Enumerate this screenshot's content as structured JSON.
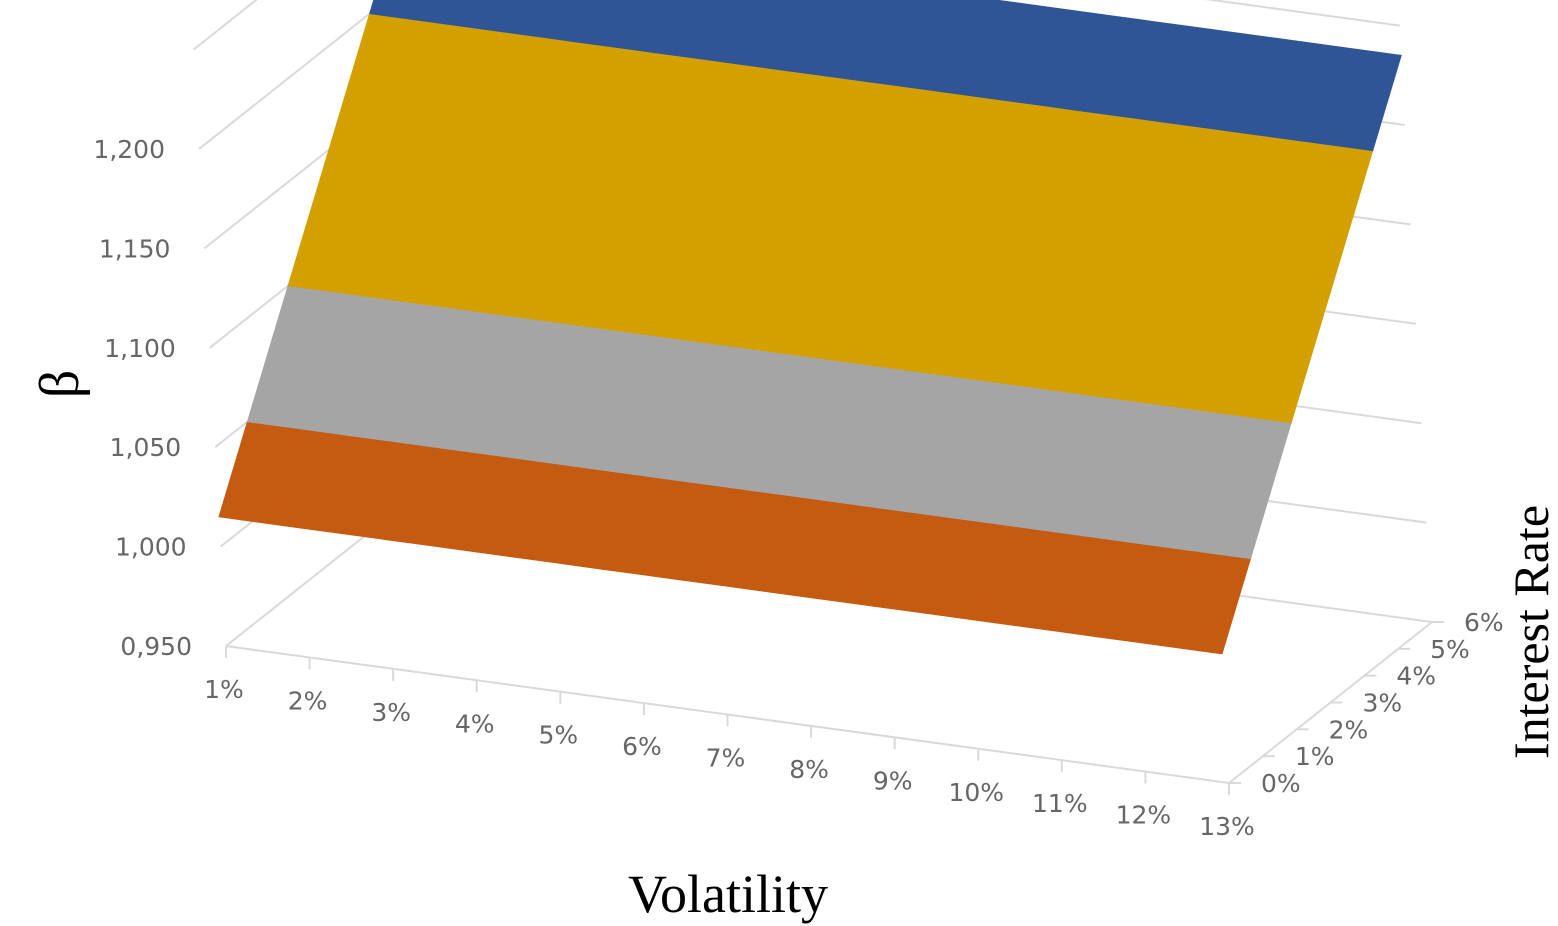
{
  "chart_data": {
    "type": "surface",
    "title": "",
    "xlabel": "Volatility",
    "ylabel": "Interest Rate",
    "zlabel": "β",
    "x_ticks": [
      "1%",
      "2%",
      "3%",
      "4%",
      "5%",
      "6%",
      "7%",
      "8%",
      "9%",
      "10%",
      "11%",
      "12%",
      "13%"
    ],
    "y_ticks": [
      "0%",
      "1%",
      "2%",
      "3%",
      "4%",
      "5%",
      "6%"
    ],
    "z_ticks": [
      "0,950",
      "1,000",
      "1,050",
      "1,100",
      "1,150",
      "1,200"
    ],
    "zlim": [
      0.95,
      1.2
    ],
    "x": [
      0.01,
      0.13
    ],
    "y": [
      0.0,
      0.06
    ],
    "z": [
      [
        1.015,
        1.015
      ],
      [
        1.235,
        1.235
      ]
    ],
    "bands": [
      {
        "range": [
          1.0,
          1.05
        ],
        "color": "#C55A11"
      },
      {
        "range": [
          1.05,
          1.1
        ],
        "color": "#A5A5A5"
      },
      {
        "range": [
          1.1,
          1.15
        ],
        "color": "#D4A000"
      },
      {
        "range": [
          1.15,
          1.2
        ],
        "color": "#D4A000"
      },
      {
        "range": [
          1.2,
          1.25
        ],
        "color": "#2F5597"
      }
    ],
    "grid": true
  }
}
